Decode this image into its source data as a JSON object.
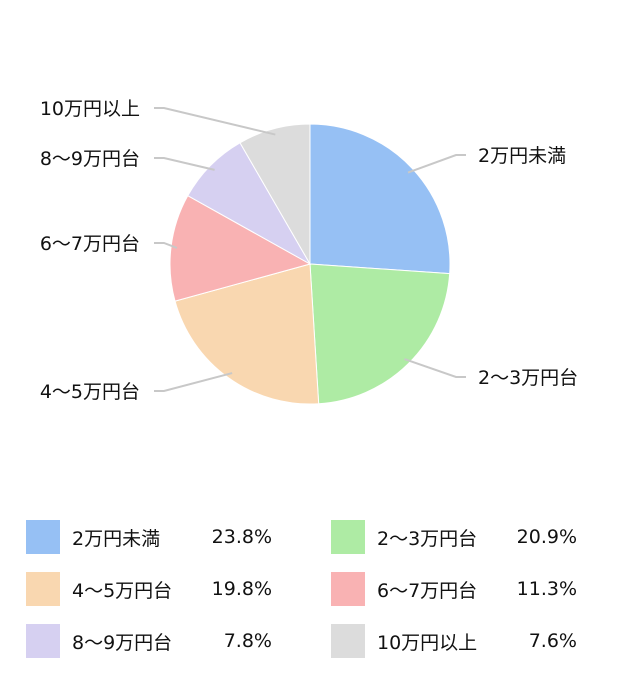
{
  "chart_data": {
    "type": "pie",
    "title": "",
    "slices": [
      {
        "label": "2万円未満",
        "value": 23.8,
        "display": "23.8%",
        "color": "#96c0f4"
      },
      {
        "label": "2〜3万円台",
        "value": 20.9,
        "display": "20.9%",
        "color": "#aeeba4"
      },
      {
        "label": "4〜5万円台",
        "value": 19.8,
        "display": "19.8%",
        "color": "#f9d7b0"
      },
      {
        "label": "6〜7万円台",
        "value": 11.3,
        "display": "11.3%",
        "color": "#f9b2b3"
      },
      {
        "label": "8〜9万円台",
        "value": 7.8,
        "display": "7.8%",
        "color": "#d6d0f1"
      },
      {
        "label": "10万円以上",
        "value": 7.6,
        "display": "7.6%",
        "color": "#dcdcdc"
      }
    ],
    "legend_position": "bottom",
    "start_angle_deg": 0,
    "direction": "clockwise"
  }
}
